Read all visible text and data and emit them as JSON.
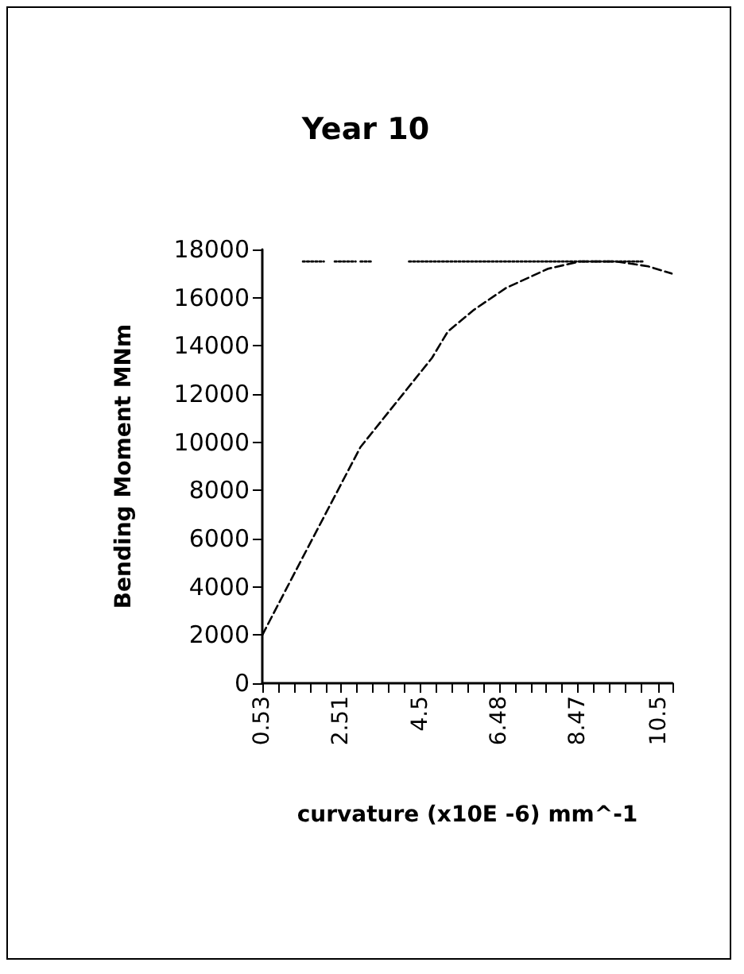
{
  "chart_data": {
    "type": "line",
    "title": "Year 10",
    "xlabel": "curvature (x10E -6) mm^-1",
    "ylabel": "Bending Moment MNm",
    "xlim": [
      0.53,
      10.85
    ],
    "ylim": [
      0,
      18000
    ],
    "yticks": [
      0,
      2000,
      4000,
      6000,
      8000,
      10000,
      12000,
      14000,
      16000,
      18000
    ],
    "xticks": [
      0.53,
      {
        "value": 0.93,
        "label": null
      },
      {
        "value": 1.32,
        "label": null
      },
      {
        "value": 1.72,
        "label": null
      },
      {
        "value": 2.12,
        "label": null
      },
      2.51,
      {
        "value": 2.91,
        "label": null
      },
      {
        "value": 3.31,
        "label": null
      },
      {
        "value": 3.71,
        "label": null
      },
      {
        "value": 4.1,
        "label": null
      },
      4.5,
      {
        "value": 4.9,
        "label": null
      },
      {
        "value": 5.29,
        "label": null
      },
      {
        "value": 5.69,
        "label": null
      },
      {
        "value": 6.09,
        "label": null
      },
      6.48,
      {
        "value": 6.88,
        "label": null
      },
      {
        "value": 7.28,
        "label": null
      },
      {
        "value": 7.67,
        "label": null
      },
      {
        "value": 8.07,
        "label": null
      },
      8.47,
      {
        "value": 8.87,
        "label": null
      },
      {
        "value": 9.26,
        "label": null
      },
      {
        "value": 9.66,
        "label": null
      },
      {
        "value": 10.06,
        "label": null
      },
      10.5,
      {
        "value": 10.85,
        "label": null
      }
    ],
    "series": [
      {
        "color": "#000000",
        "line_style": "dashed",
        "x": [
          0.53,
          1.35,
          3.0,
          4.8,
          5.2,
          5.86,
          6.66,
          7.72,
          8.51,
          9.44,
          10.24,
          10.83
        ],
        "values": [
          2000,
          4600,
          9800,
          13500,
          14600,
          15500,
          16400,
          17200,
          17500,
          17500,
          17300,
          17000
        ]
      },
      {
        "color": "#000000",
        "line_style": "dotted",
        "x": [
          1.55,
          2.08,
          2.2,
          2.35,
          2.88,
          2.95,
          3.0,
          3.27,
          3.5,
          4.22,
          10.1
        ],
        "values": [
          17500,
          17500,
          null,
          17500,
          17500,
          null,
          17500,
          17500,
          null,
          17500,
          17500
        ]
      }
    ],
    "grid": false,
    "marker": "none"
  }
}
